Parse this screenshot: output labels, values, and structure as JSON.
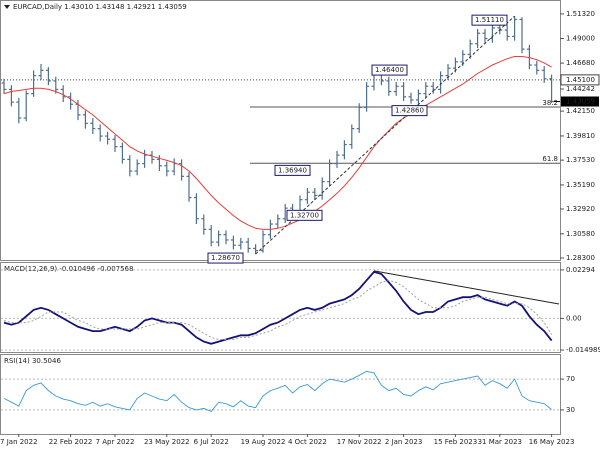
{
  "chart_data": [
    {
      "type": "candlestick",
      "title": "EURCAD,Daily  1.43010 1.43148 1.42921 1.43059",
      "categories": [
        null,
        null,
        "7 Jan 2022",
        null,
        null,
        null,
        null,
        null,
        null,
        "22 Feb 2022",
        null,
        null,
        null,
        null,
        null,
        "7 Apr 2022",
        null,
        null,
        null,
        null,
        null,
        null,
        "23 May 2022",
        null,
        null,
        null,
        null,
        null,
        "6 Jul 2022",
        null,
        null,
        null,
        null,
        null,
        null,
        "19 Aug 2022",
        null,
        null,
        null,
        null,
        null,
        "4 Oct 2022",
        null,
        null,
        null,
        null,
        null,
        null,
        "17 Nov 2022",
        null,
        null,
        null,
        null,
        null,
        "2 Jan 2023",
        null,
        null,
        null,
        null,
        null,
        null,
        "15 Feb 2023",
        null,
        null,
        null,
        null,
        null,
        "31 Mar 2023",
        null,
        null,
        null,
        null,
        null,
        null,
        "16 May 2023"
      ],
      "open": [
        1.448,
        1.442,
        1.43,
        1.415,
        1.438,
        1.455,
        1.46,
        1.45,
        1.442,
        1.435,
        1.428,
        1.418,
        1.41,
        1.405,
        1.398,
        1.395,
        1.388,
        1.376,
        1.365,
        1.372,
        1.38,
        1.376,
        1.37,
        1.365,
        1.372,
        1.36,
        1.34,
        1.32,
        1.31,
        1.298,
        1.305,
        1.3,
        1.295,
        1.298,
        1.292,
        1.29,
        1.305,
        1.315,
        1.32,
        1.33,
        1.325,
        1.338,
        1.345,
        1.342,
        1.355,
        1.372,
        1.38,
        1.39,
        1.405,
        1.425,
        1.445,
        1.458,
        1.45,
        1.44,
        1.445,
        1.435,
        1.432,
        1.438,
        1.445,
        1.442,
        1.455,
        1.462,
        1.468,
        1.475,
        1.485,
        1.495,
        1.49,
        1.5,
        1.498,
        1.492,
        1.508,
        1.48,
        1.465,
        1.46,
        1.452
      ],
      "high": [
        1.452,
        1.446,
        1.434,
        1.441,
        1.46,
        1.466,
        1.463,
        1.454,
        1.446,
        1.439,
        1.432,
        1.422,
        1.415,
        1.409,
        1.402,
        1.399,
        1.392,
        1.38,
        1.376,
        1.385,
        1.384,
        1.38,
        1.374,
        1.377,
        1.376,
        1.364,
        1.344,
        1.324,
        1.314,
        1.309,
        1.309,
        1.304,
        1.302,
        1.302,
        1.296,
        1.309,
        1.319,
        1.324,
        1.334,
        1.334,
        1.342,
        1.349,
        1.349,
        1.359,
        1.376,
        1.384,
        1.394,
        1.409,
        1.429,
        1.449,
        1.464,
        1.462,
        1.454,
        1.449,
        1.449,
        1.439,
        1.442,
        1.449,
        1.449,
        1.459,
        1.466,
        1.472,
        1.479,
        1.489,
        1.499,
        1.499,
        1.504,
        1.504,
        1.502,
        1.5111,
        1.51,
        1.484,
        1.469,
        1.464,
        1.456
      ],
      "low": [
        1.438,
        1.426,
        1.41,
        1.412,
        1.435,
        1.451,
        1.446,
        1.438,
        1.43,
        1.423,
        1.413,
        1.405,
        1.4,
        1.393,
        1.39,
        1.383,
        1.372,
        1.36,
        1.361,
        1.368,
        1.372,
        1.365,
        1.36,
        1.361,
        1.356,
        1.336,
        1.315,
        1.305,
        1.294,
        1.294,
        1.296,
        1.291,
        1.291,
        1.288,
        1.2867,
        1.288,
        1.301,
        1.311,
        1.316,
        1.321,
        1.321,
        1.334,
        1.338,
        1.338,
        1.351,
        1.368,
        1.376,
        1.386,
        1.401,
        1.421,
        1.441,
        1.446,
        1.436,
        1.436,
        1.431,
        1.4286,
        1.428,
        1.434,
        1.438,
        1.438,
        1.451,
        1.458,
        1.464,
        1.471,
        1.481,
        1.486,
        1.486,
        1.494,
        1.488,
        1.488,
        1.476,
        1.461,
        1.456,
        1.448,
        1.4292
      ],
      "close": [
        1.442,
        1.43,
        1.415,
        1.438,
        1.455,
        1.46,
        1.45,
        1.442,
        1.435,
        1.428,
        1.418,
        1.41,
        1.405,
        1.398,
        1.395,
        1.388,
        1.376,
        1.365,
        1.372,
        1.38,
        1.376,
        1.37,
        1.365,
        1.372,
        1.36,
        1.34,
        1.32,
        1.31,
        1.298,
        1.305,
        1.3,
        1.295,
        1.298,
        1.292,
        1.29,
        1.305,
        1.315,
        1.32,
        1.33,
        1.325,
        1.338,
        1.345,
        1.342,
        1.355,
        1.372,
        1.38,
        1.39,
        1.405,
        1.425,
        1.445,
        1.458,
        1.45,
        1.44,
        1.445,
        1.435,
        1.432,
        1.438,
        1.445,
        1.442,
        1.455,
        1.462,
        1.468,
        1.475,
        1.485,
        1.495,
        1.49,
        1.5,
        1.498,
        1.492,
        1.508,
        1.48,
        1.465,
        1.46,
        1.452,
        1.43059
      ],
      "color": "#4f6f90",
      "ma": {
        "color": "#e0403a",
        "values": [
          1.438,
          1.44,
          1.441,
          1.442,
          1.443,
          1.443,
          1.442,
          1.44,
          1.437,
          1.433,
          1.428,
          1.423,
          1.418,
          1.412,
          1.406,
          1.4,
          1.394,
          1.388,
          1.384,
          1.381,
          1.379,
          1.377,
          1.375,
          1.373,
          1.37,
          1.365,
          1.358,
          1.35,
          1.342,
          1.335,
          1.329,
          1.323,
          1.318,
          1.314,
          1.311,
          1.31,
          1.31,
          1.311,
          1.313,
          1.316,
          1.319,
          1.323,
          1.327,
          1.332,
          1.338,
          1.344,
          1.351,
          1.359,
          1.368,
          1.378,
          1.388,
          1.396,
          1.403,
          1.41,
          1.415,
          1.419,
          1.423,
          1.427,
          1.431,
          1.435,
          1.439,
          1.443,
          1.447,
          1.452,
          1.457,
          1.461,
          1.465,
          1.468,
          1.471,
          1.473,
          1.473,
          1.472,
          1.47,
          1.467,
          1.463
        ]
      },
      "ylim": [
        1.2811,
        1.5235
      ],
      "yticks": [
        {
          "value": 1.5132,
          "label": "1.51320"
        },
        {
          "value": 1.49,
          "label": "1.49000"
        },
        {
          "value": 1.4668,
          "label": "1.46680"
        },
        {
          "value": 1.4424,
          "label": "1.44242"
        },
        {
          "value": 1.4215,
          "label": "1.42150"
        },
        {
          "value": 1.3981,
          "label": "1.39810"
        },
        {
          "value": 1.3753,
          "label": "1.37530"
        },
        {
          "value": 1.3519,
          "label": "1.35190"
        },
        {
          "value": 1.3292,
          "label": "1.32920"
        },
        {
          "value": 1.3058,
          "label": "1.30580"
        },
        {
          "value": 1.283,
          "label": "1.28300"
        }
      ],
      "annotations": [
        {
          "label": "1.51110",
          "value": 1.5111
        },
        {
          "label": "1.46400",
          "value": 1.464
        },
        {
          "label": "1.42860",
          "value": 1.4286
        },
        {
          "label": "1.36940",
          "value": 1.3694
        },
        {
          "label": "1.32700",
          "value": 1.327
        },
        {
          "label": "1.28670",
          "value": 1.2867
        }
      ],
      "levels": [
        {
          "label": "38.2",
          "value": 1.4254
        },
        {
          "label": "61.8",
          "value": 1.3724
        }
      ],
      "alert_line": {
        "label": "1.45100",
        "value": 1.451
      },
      "last_price": {
        "label": "1.43059",
        "value": 1.43059
      }
    },
    {
      "type": "line",
      "title": "MACD(12,26,9) -0.010496 -0.007568",
      "series": [
        {
          "color": "#12127a",
          "values": [
            -0.002,
            -0.003,
            -0.002,
            0.001,
            0.004,
            0.005,
            0.004,
            0.002,
            0.0,
            -0.002,
            -0.004,
            -0.005,
            -0.006,
            -0.006,
            -0.005,
            -0.004,
            -0.005,
            -0.006,
            -0.004,
            -0.001,
            0.0,
            -0.001,
            -0.002,
            -0.002,
            -0.003,
            -0.006,
            -0.009,
            -0.011,
            -0.012,
            -0.011,
            -0.01,
            -0.009,
            -0.008,
            -0.008,
            -0.007,
            -0.005,
            -0.003,
            -0.002,
            0.0,
            0.002,
            0.004,
            0.005,
            0.004,
            0.005,
            0.007,
            0.008,
            0.009,
            0.011,
            0.014,
            0.018,
            0.022,
            0.021,
            0.017,
            0.013,
            0.008,
            0.004,
            0.002,
            0.003,
            0.003,
            0.005,
            0.008,
            0.009,
            0.01,
            0.01,
            0.011,
            0.009,
            0.008,
            0.007,
            0.006,
            0.008,
            0.006,
            0.001,
            -0.003,
            -0.006,
            -0.0105
          ]
        },
        {
          "color": "#a0a0a0",
          "dotted": true,
          "values": [
            -0.001,
            -0.002,
            -0.002,
            -0.002,
            -0.001,
            0.001,
            0.003,
            0.003,
            0.003,
            0.001,
            -0.001,
            -0.002,
            -0.004,
            -0.005,
            -0.005,
            -0.005,
            -0.005,
            -0.005,
            -0.005,
            -0.004,
            -0.003,
            -0.002,
            -0.002,
            -0.002,
            -0.002,
            -0.003,
            -0.005,
            -0.007,
            -0.009,
            -0.01,
            -0.01,
            -0.01,
            -0.009,
            -0.009,
            -0.008,
            -0.007,
            -0.006,
            -0.004,
            -0.003,
            -0.001,
            0.001,
            0.002,
            0.003,
            0.004,
            0.005,
            0.006,
            0.007,
            0.009,
            0.01,
            0.013,
            0.015,
            0.017,
            0.018,
            0.017,
            0.015,
            0.012,
            0.009,
            0.007,
            0.005,
            0.005,
            0.005,
            0.006,
            0.008,
            0.009,
            0.01,
            0.01,
            0.009,
            0.008,
            0.007,
            0.007,
            0.007,
            0.005,
            0.002,
            -0.002,
            -0.0076
          ]
        }
      ],
      "trendline": {
        "x": [
          50,
          75
        ],
        "values": [
          0.0225,
          0.0068
        ]
      },
      "ylim": [
        -0.0159,
        0.0262
      ],
      "yticks": [
        0.02294,
        {
          "value": 0,
          "label": "0.00"
        },
        -0.014989
      ]
    },
    {
      "type": "line",
      "title": "RSI(14) 30.5046",
      "series": [
        {
          "color": "#3a9ad9",
          "values": [
            45,
            40,
            35,
            55,
            62,
            65,
            55,
            48,
            44,
            42,
            38,
            36,
            40,
            35,
            38,
            34,
            32,
            30,
            45,
            52,
            48,
            44,
            42,
            50,
            40,
            33,
            30,
            32,
            28,
            40,
            38,
            34,
            42,
            35,
            33,
            48,
            55,
            58,
            62,
            52,
            60,
            63,
            55,
            64,
            70,
            68,
            66,
            70,
            75,
            80,
            78,
            62,
            55,
            58,
            50,
            48,
            55,
            60,
            56,
            64,
            66,
            68,
            70,
            72,
            74,
            62,
            68,
            64,
            58,
            70,
            48,
            42,
            40,
            38,
            30.5046
          ]
        }
      ],
      "ylim": [
        0,
        100
      ],
      "yticks": [
        70,
        30
      ]
    }
  ]
}
